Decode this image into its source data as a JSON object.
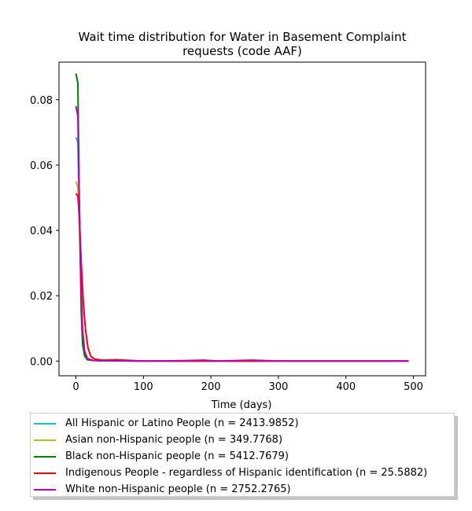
{
  "chart_data": {
    "type": "line",
    "title": "Wait time distribution  for Water in Basement Complaint requests (code AAF)",
    "title_lines": [
      "Wait time distribution  for Water in Basement Complaint",
      "requests (code AAF)"
    ],
    "xlabel": "Time (days)",
    "ylabel": "",
    "xlim": [
      -25,
      518
    ],
    "ylim": [
      -0.0045,
      0.0915
    ],
    "xticks": [
      0,
      100,
      200,
      300,
      400,
      500
    ],
    "xtick_labels": [
      "0",
      "100",
      "200",
      "300",
      "400",
      "500"
    ],
    "yticks": [
      0.0,
      0.02,
      0.04,
      0.06,
      0.08
    ],
    "ytick_labels": [
      "0.00",
      "0.02",
      "0.04",
      "0.06",
      "0.08"
    ],
    "grid": false,
    "legend_position": "below plot",
    "series": [
      {
        "name": "All Hispanic or Latino People (n = 2413.9852)",
        "color": "#17becf",
        "points": [
          [
            0,
            0.0685
          ],
          [
            3,
            0.067
          ],
          [
            5,
            0.045
          ],
          [
            8,
            0.02
          ],
          [
            10,
            0.008
          ],
          [
            13,
            0.002
          ],
          [
            17,
            0.0005
          ],
          [
            25,
            0.0002
          ],
          [
            40,
            0.0001
          ],
          [
            100,
            0.0
          ],
          [
            200,
            0.0
          ],
          [
            300,
            0.0
          ],
          [
            400,
            0.0
          ],
          [
            493,
            0.0
          ]
        ]
      },
      {
        "name": "Asian non-Hispanic people (n = 349.7768)",
        "color": "#bcbd22",
        "points": [
          [
            0,
            0.055
          ],
          [
            3,
            0.053
          ],
          [
            5,
            0.042
          ],
          [
            8,
            0.022
          ],
          [
            10,
            0.01
          ],
          [
            13,
            0.003
          ],
          [
            17,
            0.0008
          ],
          [
            25,
            0.0003
          ],
          [
            40,
            0.0002
          ],
          [
            60,
            0.0002
          ],
          [
            100,
            0.0
          ],
          [
            200,
            0.0
          ],
          [
            300,
            0.0
          ],
          [
            400,
            0.0
          ],
          [
            493,
            0.0
          ]
        ]
      },
      {
        "name": "Black non-Hispanic people (n = 5412.7679)",
        "color": "#008000",
        "points": [
          [
            0,
            0.088
          ],
          [
            3,
            0.085
          ],
          [
            5,
            0.05
          ],
          [
            8,
            0.015
          ],
          [
            10,
            0.005
          ],
          [
            13,
            0.0015
          ],
          [
            17,
            0.0004
          ],
          [
            25,
            0.0002
          ],
          [
            50,
            0.0001
          ],
          [
            100,
            0.0
          ],
          [
            200,
            0.0
          ],
          [
            300,
            0.0
          ],
          [
            400,
            0.0
          ],
          [
            493,
            0.0
          ]
        ]
      },
      {
        "name": "Indigenous People - regardless of Hispanic identification (n = 25.5882)",
        "color": "#ff0000",
        "points": [
          [
            0,
            0.0513
          ],
          [
            3,
            0.0505
          ],
          [
            5,
            0.045
          ],
          [
            8,
            0.03
          ],
          [
            11,
            0.018
          ],
          [
            14,
            0.01
          ],
          [
            18,
            0.004
          ],
          [
            22,
            0.0015
          ],
          [
            28,
            0.0006
          ],
          [
            40,
            0.0003
          ],
          [
            60,
            0.0004
          ],
          [
            80,
            0.0002
          ],
          [
            100,
            0.0
          ],
          [
            200,
            0.0
          ],
          [
            300,
            0.0
          ],
          [
            400,
            0.0
          ],
          [
            493,
            0.0
          ]
        ]
      },
      {
        "name": "White non-Hispanic people (n = 2752.2765)",
        "color": "#bf00bf",
        "points": [
          [
            0,
            0.078
          ],
          [
            3,
            0.075
          ],
          [
            5,
            0.05
          ],
          [
            8,
            0.02
          ],
          [
            10,
            0.009
          ],
          [
            13,
            0.003
          ],
          [
            17,
            0.0008
          ],
          [
            25,
            0.0002
          ],
          [
            50,
            0.0001
          ],
          [
            100,
            0.0
          ],
          [
            150,
            0.0001
          ],
          [
            190,
            0.0003
          ],
          [
            210,
            0.0
          ],
          [
            260,
            0.0003
          ],
          [
            300,
            0.0
          ],
          [
            400,
            0.0
          ],
          [
            493,
            0.0
          ]
        ]
      }
    ]
  }
}
